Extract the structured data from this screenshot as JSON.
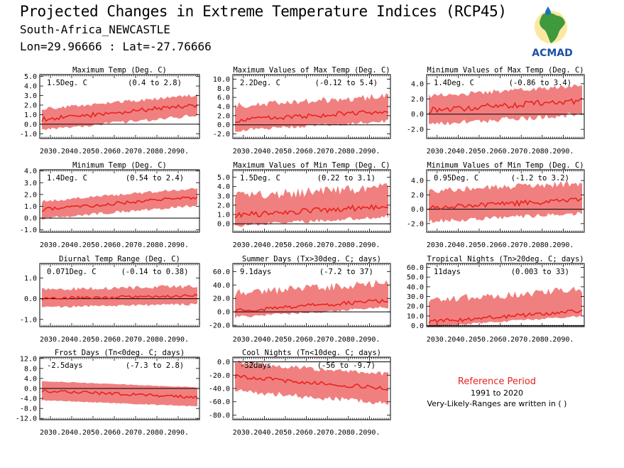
{
  "header": {
    "title": "Projected Changes in Extreme Temperature Indices (RCP45)",
    "station": "South-Africa_NEWCASTLE",
    "coords": "Lon=29.96666 : Lat=-27.76666"
  },
  "logo": {
    "text": "ACMAD",
    "icon": "africa-map-water-drop-logo"
  },
  "reference": {
    "title": "Reference Period",
    "years": "1991 to 2020",
    "note": "Very-Likely-Ranges are written in ( )"
  },
  "colors": {
    "line": "#e8231e",
    "band": "#f08080",
    "axis": "#000000"
  },
  "chart_data": [
    {
      "type": "line",
      "title": "Maximum Temp (Deg. C)",
      "mean_label": "1.5Deg. C",
      "range_label": "(0.4 to 2.8)",
      "x_start": 2025,
      "x_end": 2100,
      "ylim": [
        -1.5,
        5.2
      ],
      "yticks": [
        5.0,
        4.0,
        3.0,
        2.0,
        1.0,
        0.0,
        -1.0
      ],
      "ydec": 1,
      "xticks": [
        2030,
        2040,
        2050,
        2060,
        2070,
        2080,
        2090
      ],
      "series": [
        {
          "start": 0.5,
          "end": 2.0,
          "lo_off": -0.9,
          "hi_off": 0.9,
          "noise": 0.25,
          "lo_noise": 0.35,
          "hi_noise": 0.35
        }
      ]
    },
    {
      "type": "line",
      "title": "Maximum Values of Max Temp (Deg. C)",
      "mean_label": "2.2Deg. C",
      "range_label": "(-0.12 to 5.4)",
      "x_start": 2025,
      "x_end": 2100,
      "ylim": [
        -3,
        11
      ],
      "yticks": [
        10.0,
        8.0,
        6.0,
        4.0,
        2.0,
        0.0,
        -2.0
      ],
      "ydec": 1,
      "xticks": [
        2030,
        2040,
        2050,
        2060,
        2070,
        2080,
        2090
      ],
      "series": [
        {
          "start": 1.0,
          "end": 3.0,
          "lo_off": -1.8,
          "hi_off": 2.5,
          "noise": 0.5,
          "lo_noise": 0.8,
          "hi_noise": 1.5
        }
      ]
    },
    {
      "type": "line",
      "title": "Minimum Values of Max Temp (Deg. C)",
      "mean_label": "1.4Deg. C",
      "range_label": "(-0.86 to 3.4)",
      "x_start": 2025,
      "x_end": 2100,
      "ylim": [
        -3.2,
        5.2
      ],
      "yticks": [
        4.0,
        2.0,
        0.0,
        -2.0
      ],
      "ydec": 1,
      "xticks": [
        2030,
        2040,
        2050,
        2060,
        2070,
        2080,
        2090
      ],
      "series": [
        {
          "start": 0.5,
          "end": 1.8,
          "lo_off": -1.5,
          "hi_off": 1.6,
          "noise": 0.4,
          "lo_noise": 0.7,
          "hi_noise": 0.6
        }
      ]
    },
    {
      "type": "line",
      "title": "Minimum Temp (Deg. C)",
      "mean_label": "1.4Deg. C",
      "range_label": "(0.54 to 2.4)",
      "x_start": 2025,
      "x_end": 2100,
      "ylim": [
        -1.2,
        4.1
      ],
      "yticks": [
        4.0,
        3.0,
        2.0,
        1.0,
        0.0,
        -1.0
      ],
      "ydec": 1,
      "xticks": [
        2030,
        2040,
        2050,
        2060,
        2070,
        2080,
        2090
      ],
      "series": [
        {
          "start": 0.7,
          "end": 1.8,
          "lo_off": -0.6,
          "hi_off": 0.6,
          "noise": 0.15,
          "lo_noise": 0.25,
          "hi_noise": 0.25
        }
      ]
    },
    {
      "type": "line",
      "title": "Maximum Values of Min Temp (Deg. C)",
      "mean_label": "1.5Deg. C",
      "range_label": "(0.22 to 3.1)",
      "x_start": 2025,
      "x_end": 2100,
      "ylim": [
        -0.9,
        5.8
      ],
      "yticks": [
        5.0,
        4.0,
        3.0,
        2.0,
        1.0,
        0.0
      ],
      "ydec": 1,
      "xticks": [
        2030,
        2040,
        2050,
        2060,
        2070,
        2080,
        2090
      ],
      "series": [
        {
          "start": 0.9,
          "end": 1.9,
          "lo_off": -0.9,
          "hi_off": 1.5,
          "noise": 0.3,
          "lo_noise": 0.4,
          "hi_noise": 1.1
        }
      ]
    },
    {
      "type": "line",
      "title": "Minimum Values of Min Temp (Deg. C)",
      "mean_label": "0.95Deg. C",
      "range_label": "(-1.2 to 3.2)",
      "x_start": 2025,
      "x_end": 2100,
      "ylim": [
        -3.2,
        5.5
      ],
      "yticks": [
        4.0,
        2.0,
        0.0,
        -2.0
      ],
      "ydec": 1,
      "xticks": [
        2030,
        2040,
        2050,
        2060,
        2070,
        2080,
        2090
      ],
      "series": [
        {
          "start": 0.2,
          "end": 1.3,
          "lo_off": -1.6,
          "hi_off": 1.9,
          "noise": 0.35,
          "lo_noise": 0.6,
          "hi_noise": 0.9
        }
      ]
    },
    {
      "type": "line",
      "title": "Diurnal Temp Range (Deg. C)",
      "mean_label": "0.071Deg. C",
      "range_label": "(-0.14 to 0.38)",
      "x_start": 2025,
      "x_end": 2100,
      "ylim": [
        -1.35,
        1.7
      ],
      "yticks": [
        1.0,
        0.0,
        -1.0
      ],
      "ydec": 1,
      "xticks": [
        2030,
        2040,
        2050,
        2060,
        2070,
        2080,
        2090
      ],
      "series": [
        {
          "start": 0.0,
          "end": 0.15,
          "lo_off": -0.35,
          "hi_off": 0.35,
          "noise": 0.08,
          "lo_noise": 0.12,
          "hi_noise": 0.2
        }
      ]
    },
    {
      "type": "line",
      "title": "Summer Days (Tx>30deg. C; days)",
      "mean_label": "9.1days",
      "range_label": "(-7.2 to 37)",
      "x_start": 2025,
      "x_end": 2100,
      "ylim": [
        -22,
        72
      ],
      "yticks": [
        60,
        40,
        20,
        0,
        -20
      ],
      "ydec": 1,
      "xticks": [
        2030,
        2040,
        2050,
        2060,
        2070,
        2080,
        2090
      ],
      "series": [
        {
          "start": 2,
          "end": 17,
          "lo_off": -8,
          "hi_off": 20,
          "noise": 3,
          "lo_noise": 4,
          "hi_noise": 12
        }
      ]
    },
    {
      "type": "line",
      "title": "Tropical Nights (Tn>20deg. C; days)",
      "mean_label": "11days",
      "range_label": "(0.003 to 33)",
      "x_start": 2025,
      "x_end": 2100,
      "ylim": [
        -1,
        64
      ],
      "yticks": [
        60,
        50,
        40,
        30,
        20,
        10,
        0
      ],
      "ydec": 1,
      "xticks": [
        2030,
        2040,
        2050,
        2060,
        2070,
        2080,
        2090
      ],
      "series": [
        {
          "start": 4,
          "end": 15,
          "lo_off": -4,
          "hi_off": 18,
          "noise": 2,
          "lo_noise": 2,
          "hi_noise": 8
        }
      ]
    },
    {
      "type": "line",
      "title": "Frost Days (Tn<0deg. C; days)",
      "mean_label": "-2.5days",
      "range_label": "(-7.3 to 2.8)",
      "x_start": 2025,
      "x_end": 2100,
      "ylim": [
        -12.5,
        12.5
      ],
      "yticks": [
        12.0,
        8.0,
        4.0,
        0.0,
        -4.0,
        -8.0,
        -12.0
      ],
      "ydec": 1,
      "xticks": [
        2030,
        2040,
        2050,
        2060,
        2070,
        2080,
        2090
      ],
      "series": [
        {
          "start": -1,
          "end": -3.5,
          "lo_off": -3.5,
          "hi_off": 3.8,
          "noise": 0.6,
          "lo_noise": 0.4,
          "hi_noise": 0.3
        }
      ]
    },
    {
      "type": "line",
      "title": "Cool Nights (Tn<10deg. C; days)",
      "mean_label": "-32days",
      "range_label": "(-56 to -9.7)",
      "x_start": 2025,
      "x_end": 2100,
      "ylim": [
        -87,
        7
      ],
      "yticks": [
        0,
        -20,
        -40,
        -60,
        -80
      ],
      "ydec": 1,
      "xticks": [
        2030,
        2040,
        2050,
        2060,
        2070,
        2080,
        2090
      ],
      "series": [
        {
          "start": -22,
          "end": -40,
          "lo_off": -18,
          "hi_off": 17,
          "noise": 3,
          "lo_noise": 8,
          "hi_noise": 8
        }
      ]
    }
  ]
}
